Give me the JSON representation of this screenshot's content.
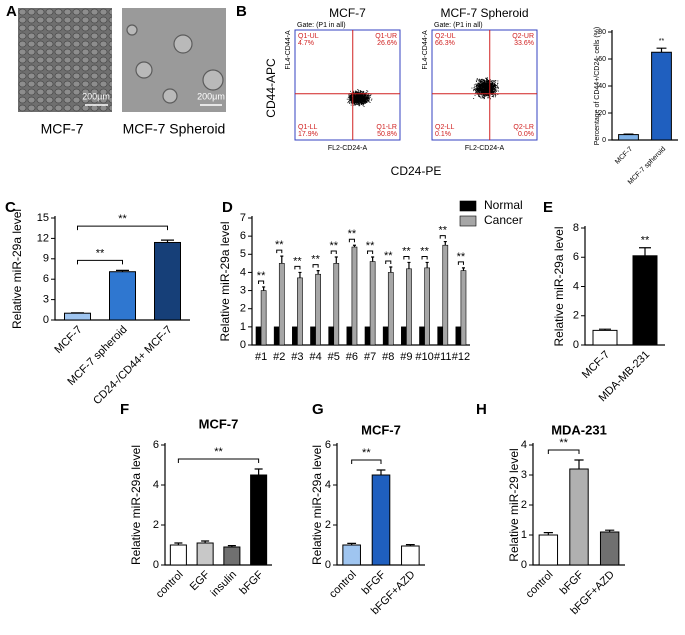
{
  "micrographs": {
    "panel": "A",
    "images": [
      {
        "label": "MCF-7",
        "scale": "200μm"
      },
      {
        "label": "MCF-7 Spheroid",
        "scale": "200μm"
      }
    ]
  },
  "flow": {
    "panel": "B",
    "x_label": "CD24-PE",
    "y_label": "CD44-APC",
    "plots": [
      {
        "title": "MCF-7",
        "gate": "Gate: (P1 in all)",
        "x_axis": "FL2-CD24-A",
        "y_axis": "FL4-CD44-A",
        "quadrants": [
          {
            "name": "Q1-UL",
            "percent": "4.7%"
          },
          {
            "name": "Q1-UR",
            "percent": "26.6%"
          },
          {
            "name": "Q1-LL",
            "percent": "17.9%"
          },
          {
            "name": "Q1-LR",
            "percent": "50.8%"
          }
        ]
      },
      {
        "title": "MCF-7 Spheroid",
        "gate": "Gate: (P1 in all)",
        "x_axis": "FL2-CD24-A",
        "y_axis": "FL4-CD44-A",
        "quadrants": [
          {
            "name": "Q2-UL",
            "percent": "66.3%"
          },
          {
            "name": "Q2-UR",
            "percent": "33.6%"
          },
          {
            "name": "Q2-LL",
            "percent": "0.1%"
          },
          {
            "name": "Q2-LR",
            "percent": "0.0%"
          }
        ]
      }
    ]
  },
  "chart_data": [
    {
      "type": "bar",
      "ylabel": "Percentage of CD44+/CD24- cells (%)",
      "categories": [
        "MCF-7",
        "MCF-7 spheroid"
      ],
      "values": [
        4,
        65
      ],
      "errors": [
        0.4,
        3
      ],
      "colors": [
        "#7fb2e8",
        "#1f5fbf"
      ],
      "ylim": [
        0,
        80
      ],
      "yticks": [
        0,
        20,
        40,
        60,
        80
      ],
      "significance": [
        {
          "between": [
            "MCF-7 spheroid"
          ],
          "label": "**"
        }
      ]
    },
    {
      "type": "bar",
      "panel": "C",
      "ylabel": "Relative miR-29a level",
      "categories": [
        "MCF-7",
        "MCF-7 spheroid",
        "CD24-/CD44+ MCF-7"
      ],
      "values": [
        1,
        7.1,
        11.4
      ],
      "errors": [
        0.05,
        0.2,
        0.35
      ],
      "colors": [
        "#9fc5f0",
        "#2f77d0",
        "#163f78"
      ],
      "ylim": [
        0,
        15
      ],
      "yticks": [
        0,
        3,
        6,
        9,
        12,
        15
      ],
      "significance": [
        {
          "between": [
            "MCF-7",
            "MCF-7 spheroid"
          ],
          "label": "**"
        },
        {
          "between": [
            "MCF-7",
            "CD24-/CD44+ MCF-7"
          ],
          "label": "**"
        }
      ]
    },
    {
      "type": "grouped_bar",
      "panel": "D",
      "ylabel": "Relative miR-29a level",
      "legend": "upper right",
      "categories": [
        "#1",
        "#2",
        "#3",
        "#4",
        "#5",
        "#6",
        "#7",
        "#8",
        "#9",
        "#10",
        "#11",
        "#12"
      ],
      "series": [
        {
          "name": "Normal",
          "color": "#000000",
          "values": [
            1,
            1,
            1,
            1,
            1,
            1,
            1,
            1,
            1,
            1,
            1,
            1
          ]
        },
        {
          "name": "Cancer",
          "color": "#a6a6a6",
          "values": [
            3.0,
            4.5,
            3.7,
            3.9,
            4.5,
            5.4,
            4.6,
            4.0,
            4.2,
            4.25,
            5.5,
            4.1
          ],
          "errors": [
            0.2,
            0.4,
            0.3,
            0.2,
            0.35,
            0.1,
            0.25,
            0.3,
            0.35,
            0.3,
            0.2,
            0.15
          ]
        }
      ],
      "ylim": [
        0,
        7
      ],
      "yticks": [
        0,
        1,
        2,
        3,
        4,
        5,
        6,
        7
      ],
      "significance": [
        "**",
        "**",
        "**",
        "**",
        "**",
        "**",
        "**",
        "**",
        "**",
        "**",
        "**",
        "**"
      ]
    },
    {
      "type": "bar",
      "panel": "E",
      "ylabel": "Relative miR-29a level",
      "categories": [
        "MCF-7",
        "MDA-MB-231"
      ],
      "values": [
        1,
        6.1
      ],
      "errors": [
        0.08,
        0.55
      ],
      "colors": [
        "#ffffff",
        "#000000"
      ],
      "ylim": [
        0,
        8
      ],
      "yticks": [
        0,
        2,
        4,
        6,
        8
      ],
      "significance": [
        {
          "between": [
            "MDA-MB-231"
          ],
          "label": "**"
        }
      ]
    },
    {
      "type": "bar",
      "panel": "F",
      "title": "MCF-7",
      "ylabel": "Relative miR-29a level",
      "categories": [
        "control",
        "EGF",
        "insulin",
        "bFGF"
      ],
      "values": [
        1,
        1.1,
        0.9,
        4.5
      ],
      "errors": [
        0.1,
        0.1,
        0.07,
        0.3
      ],
      "colors": [
        "#ffffff",
        "#c8c8c8",
        "#707070",
        "#000000"
      ],
      "ylim": [
        0,
        6
      ],
      "yticks": [
        0,
        2,
        4,
        6
      ],
      "significance": [
        {
          "between": [
            "control",
            "bFGF"
          ],
          "label": "**"
        }
      ]
    },
    {
      "type": "bar",
      "panel": "G",
      "title": "MCF-7",
      "ylabel": "Relative miR-29a level",
      "categories": [
        "control",
        "bFGF",
        "bFGF+AZD"
      ],
      "values": [
        1,
        4.5,
        0.95
      ],
      "errors": [
        0.08,
        0.25,
        0.07
      ],
      "colors": [
        "#9fc5f0",
        "#1f5fbf",
        "#ffffff"
      ],
      "ylim": [
        0,
        6
      ],
      "yticks": [
        0,
        2,
        4,
        6
      ],
      "significance": [
        {
          "between": [
            "control",
            "bFGF"
          ],
          "label": "**"
        }
      ]
    },
    {
      "type": "bar",
      "panel": "H",
      "title": "MDA-231",
      "ylabel": "Relative miR-29 level",
      "categories": [
        "control",
        "bFGF",
        "bFGF+AZD"
      ],
      "values": [
        1,
        3.2,
        1.1
      ],
      "errors": [
        0.08,
        0.3,
        0.06
      ],
      "colors": [
        "#ffffff",
        "#b0b0b0",
        "#707070"
      ],
      "ylim": [
        0,
        4
      ],
      "yticks": [
        0,
        1,
        2,
        3,
        4
      ],
      "significance": [
        {
          "between": [
            "control",
            "bFGF"
          ],
          "label": "**"
        }
      ]
    }
  ]
}
